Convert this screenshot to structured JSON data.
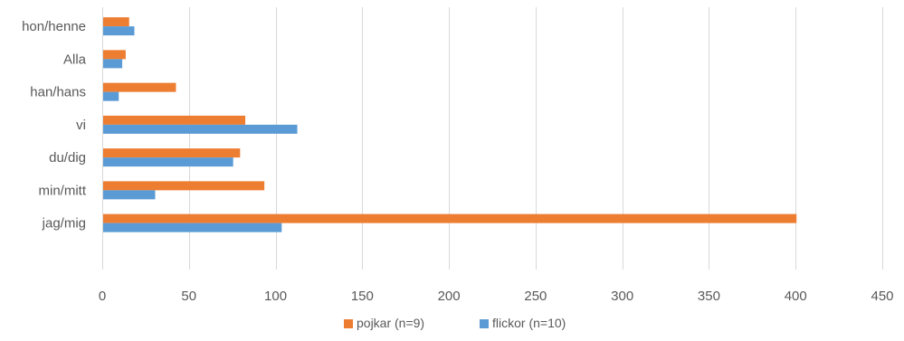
{
  "chart_data": {
    "type": "bar",
    "orientation": "horizontal",
    "categories": [
      "hon/henne",
      "Alla",
      "han/hans",
      "vi",
      "du/dig",
      "min/mitt",
      "jag/mig"
    ],
    "series": [
      {
        "name": "pojkar (n=9)",
        "color": "#ED7D31",
        "values": [
          15,
          13,
          42,
          82,
          79,
          93,
          400
        ]
      },
      {
        "name": "flickor (n=10)",
        "color": "#5B9BD5",
        "values": [
          18,
          11,
          9,
          112,
          75,
          30,
          103
        ]
      }
    ],
    "xlim": [
      0,
      450
    ],
    "xticks": [
      0,
      50,
      100,
      150,
      200,
      250,
      300,
      350,
      400,
      450
    ],
    "grid": true,
    "legend_position": "bottom",
    "title": "",
    "xlabel": "",
    "ylabel": ""
  }
}
